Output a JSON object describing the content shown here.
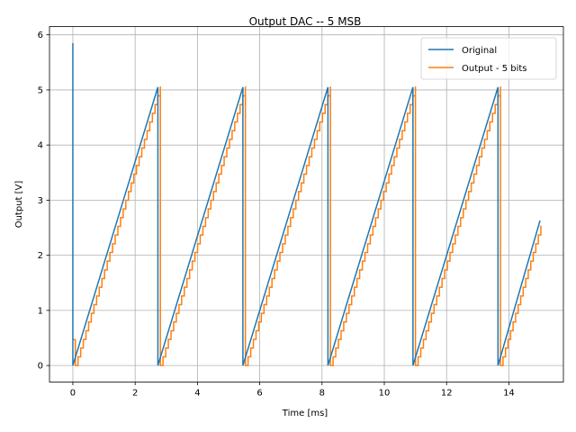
{
  "chart_data": {
    "type": "line",
    "title": "Output DAC -- 5 MSB",
    "xlabel": "Time [ms]",
    "ylabel": "Output [V]",
    "xlim": [
      -0.75,
      15.75
    ],
    "ylim": [
      -0.3,
      6.15
    ],
    "xticks": [
      0,
      2,
      4,
      6,
      8,
      10,
      12,
      14
    ],
    "yticks": [
      0,
      1,
      2,
      3,
      4,
      5,
      6
    ],
    "grid": true,
    "legend_position": "top-right",
    "series": [
      {
        "name": "Original",
        "color": "#1f77b4",
        "x": [
          0.0,
          0.0,
          0.0,
          2.73,
          2.73,
          5.46,
          5.46,
          8.19,
          8.19,
          10.92,
          10.92,
          13.65,
          13.65,
          15.0
        ],
        "y": [
          5.85,
          0.0,
          0.0,
          5.05,
          0.0,
          5.05,
          0.0,
          5.05,
          0.0,
          5.05,
          0.0,
          5.05,
          0.0,
          2.63
        ]
      },
      {
        "name": "Output - 5 bits",
        "color": "#ff7f0e",
        "step": 0.1578,
        "quantize": "floor",
        "delay": 0.08,
        "startup": {
          "x": [
            0.0,
            0.08
          ],
          "y": [
            0.47,
            0.47
          ]
        },
        "source_series": 0
      }
    ]
  }
}
